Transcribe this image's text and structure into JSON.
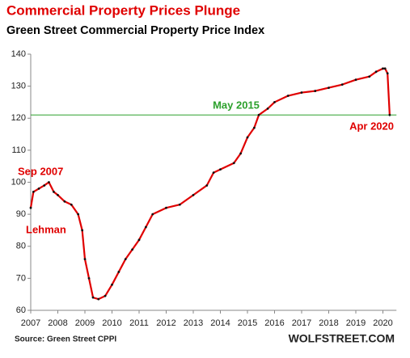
{
  "chart_data": {
    "type": "line",
    "title": "Commercial Property Prices Plunge",
    "subtitle": "Green Street Commercial Property Price Index",
    "source": "Source: Green Street CPPI",
    "brand": "WOLFSTREET.COM",
    "x": [
      2007.0,
      2007.1,
      2007.3,
      2007.5,
      2007.67,
      2007.85,
      2008.0,
      2008.25,
      2008.5,
      2008.75,
      2008.9,
      2009.0,
      2009.15,
      2009.3,
      2009.5,
      2009.75,
      2010.0,
      2010.25,
      2010.5,
      2010.75,
      2011.0,
      2011.25,
      2011.5,
      2012.0,
      2012.5,
      2013.0,
      2013.5,
      2013.75,
      2014.0,
      2014.5,
      2014.75,
      2015.0,
      2015.25,
      2015.42,
      2015.75,
      2016.0,
      2016.5,
      2017.0,
      2017.5,
      2018.0,
      2018.5,
      2019.0,
      2019.5,
      2019.75,
      2020.0,
      2020.08,
      2020.17,
      2020.25
    ],
    "series": [
      {
        "name": "Green Street CPPI",
        "color": "#e00000",
        "values": [
          92,
          97,
          98,
          99,
          100,
          97,
          96,
          94,
          93,
          90,
          85,
          76,
          70,
          64,
          63.5,
          64.5,
          68,
          72,
          76,
          79,
          82,
          86,
          90,
          92,
          93,
          96,
          99,
          103,
          104,
          106,
          109,
          114,
          117,
          121,
          123,
          125,
          127,
          128,
          128.5,
          129.5,
          130.5,
          132,
          133,
          134.5,
          135.5,
          135.5,
          134,
          121
        ]
      }
    ],
    "reference_line": {
      "value": 121,
      "color": "#2ca02c"
    },
    "annotations": [
      {
        "text": "Sep 2007",
        "color": "#e00000"
      },
      {
        "text": "Lehman",
        "color": "#e00000"
      },
      {
        "text": "May 2015",
        "color": "#2ca02c"
      },
      {
        "text": "Apr 2020",
        "color": "#e00000"
      }
    ],
    "xlim": [
      2007,
      2020.5
    ],
    "xticks": [
      2007,
      2008,
      2009,
      2010,
      2011,
      2012,
      2013,
      2014,
      2015,
      2016,
      2017,
      2018,
      2019,
      2020
    ],
    "ylim": [
      60,
      140
    ],
    "yticks": [
      60,
      70,
      80,
      90,
      100,
      110,
      120,
      130,
      140
    ]
  }
}
